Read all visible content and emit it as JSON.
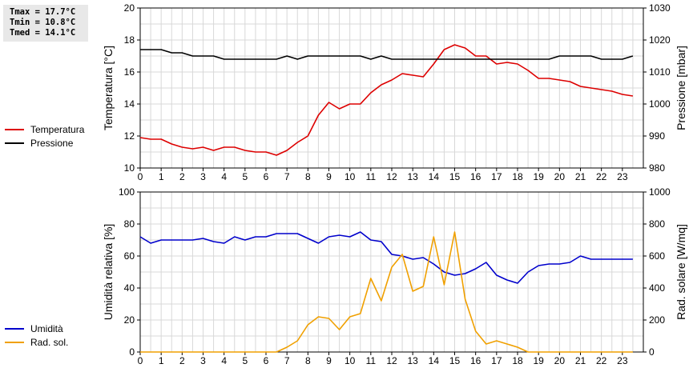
{
  "stats": {
    "tmax": "Tmax = 17.7°C",
    "tmin": "Tmin = 10.8°C",
    "tmed": "Tmed = 14.1°C"
  },
  "legend_top": [
    {
      "label": "Temperatura",
      "color": "#dd0000"
    },
    {
      "label": "Pressione",
      "color": "#000000"
    }
  ],
  "legend_bottom": [
    {
      "label": "Umidità",
      "color": "#0000cc"
    },
    {
      "label": "Rad. sol.",
      "color": "#f0a000"
    }
  ],
  "chart_data": [
    {
      "type": "line",
      "xlabel": "",
      "xlim": [
        0,
        24
      ],
      "x_ticks": [
        "0",
        "1",
        "2",
        "3",
        "4",
        "5",
        "6",
        "7",
        "8",
        "9",
        "10",
        "11",
        "12",
        "13",
        "14",
        "15",
        "16",
        "17",
        "18",
        "19",
        "20",
        "21",
        "22",
        "23"
      ],
      "ylabel": "Temperatura [°C]",
      "ylim": [
        10,
        20
      ],
      "y_ticks": [
        "10",
        "12",
        "14",
        "16",
        "18",
        "20"
      ],
      "y2label": "Pressione [mbar]",
      "y2lim": [
        980,
        1030
      ],
      "y2_ticks": [
        "980",
        "990",
        "1000",
        "1010",
        "1020",
        "1030"
      ],
      "grid": true,
      "series": [
        {
          "name": "Temperatura",
          "axis": "left",
          "color": "#dd0000",
          "x": [
            0,
            0.5,
            1,
            1.5,
            2,
            2.5,
            3,
            3.5,
            4,
            4.5,
            5,
            5.5,
            6,
            6.5,
            7,
            7.5,
            8,
            8.5,
            9,
            9.5,
            10,
            10.5,
            11,
            11.5,
            12,
            12.5,
            13,
            13.5,
            14,
            14.5,
            15,
            15.5,
            16,
            16.5,
            17,
            17.5,
            18,
            18.5,
            19,
            19.5,
            20,
            20.5,
            21,
            21.5,
            22,
            22.5,
            23,
            23.5
          ],
          "y": [
            11.9,
            11.8,
            11.8,
            11.5,
            11.3,
            11.2,
            11.3,
            11.1,
            11.3,
            11.3,
            11.1,
            11.0,
            11.0,
            10.8,
            11.1,
            11.6,
            12.0,
            13.3,
            14.1,
            13.7,
            14.0,
            14.0,
            14.7,
            15.2,
            15.5,
            15.9,
            15.8,
            15.7,
            16.5,
            17.4,
            17.7,
            17.5,
            17.0,
            17.0,
            16.5,
            16.6,
            16.5,
            16.1,
            15.6,
            15.6,
            15.5,
            15.4,
            15.1,
            15.0,
            14.9,
            14.8,
            14.6,
            14.5
          ]
        },
        {
          "name": "Pressione",
          "axis": "right",
          "color": "#000000",
          "x": [
            0,
            0.5,
            1,
            1.5,
            2,
            2.5,
            3,
            3.5,
            4,
            4.5,
            5,
            5.5,
            6,
            6.5,
            7,
            7.5,
            8,
            8.5,
            9,
            9.5,
            10,
            10.5,
            11,
            11.5,
            12,
            12.5,
            13,
            13.5,
            14,
            14.5,
            15,
            15.5,
            16,
            16.5,
            17,
            17.5,
            18,
            18.5,
            19,
            19.5,
            20,
            20.5,
            21,
            21.5,
            22,
            22.5,
            23,
            23.5
          ],
          "y": [
            1017,
            1017,
            1017,
            1016,
            1016,
            1015,
            1015,
            1015,
            1014,
            1014,
            1014,
            1014,
            1014,
            1014,
            1015,
            1014,
            1015,
            1015,
            1015,
            1015,
            1015,
            1015,
            1014,
            1015,
            1014,
            1014,
            1014,
            1014,
            1014,
            1014,
            1014,
            1014,
            1014,
            1014,
            1014,
            1014,
            1014,
            1014,
            1014,
            1014,
            1015,
            1015,
            1015,
            1015,
            1014,
            1014,
            1014,
            1015
          ]
        }
      ]
    },
    {
      "type": "line",
      "xlabel": "",
      "xlim": [
        0,
        24
      ],
      "x_ticks": [
        "0",
        "1",
        "2",
        "3",
        "4",
        "5",
        "6",
        "7",
        "8",
        "9",
        "10",
        "11",
        "12",
        "13",
        "14",
        "15",
        "16",
        "17",
        "18",
        "19",
        "20",
        "21",
        "22",
        "23"
      ],
      "ylabel": "Umidità relativa [%]",
      "ylim": [
        0,
        100
      ],
      "y_ticks": [
        "0",
        "20",
        "40",
        "60",
        "80",
        "100"
      ],
      "y2label": "Rad. solare [W/mq]",
      "y2lim": [
        0,
        1000
      ],
      "y2_ticks": [
        "0",
        "200",
        "400",
        "600",
        "800",
        "1000"
      ],
      "grid": true,
      "series": [
        {
          "name": "Umidità",
          "axis": "left",
          "color": "#0000cc",
          "x": [
            0,
            0.5,
            1,
            1.5,
            2,
            2.5,
            3,
            3.5,
            4,
            4.5,
            5,
            5.5,
            6,
            6.5,
            7,
            7.5,
            8,
            8.5,
            9,
            9.5,
            10,
            10.5,
            11,
            11.5,
            12,
            12.5,
            13,
            13.5,
            14,
            14.5,
            15,
            15.5,
            16,
            16.5,
            17,
            17.5,
            18,
            18.5,
            19,
            19.5,
            20,
            20.5,
            21,
            21.5,
            22,
            22.5,
            23,
            23.5
          ],
          "y": [
            72,
            68,
            70,
            70,
            70,
            70,
            71,
            69,
            68,
            72,
            70,
            72,
            72,
            74,
            74,
            74,
            71,
            68,
            72,
            73,
            72,
            75,
            70,
            69,
            61,
            60,
            58,
            59,
            55,
            50,
            48,
            49,
            52,
            56,
            48,
            45,
            43,
            50,
            54,
            55,
            55,
            56,
            60,
            58,
            58,
            58,
            58,
            58
          ]
        },
        {
          "name": "Rad. sol.",
          "axis": "right",
          "color": "#f0a000",
          "x": [
            0,
            0.5,
            1,
            1.5,
            2,
            2.5,
            3,
            3.5,
            4,
            4.5,
            5,
            5.5,
            6,
            6.5,
            7,
            7.5,
            8,
            8.5,
            9,
            9.5,
            10,
            10.5,
            11,
            11.5,
            12,
            12.5,
            13,
            13.5,
            14,
            14.5,
            15,
            15.5,
            16,
            16.5,
            17,
            17.5,
            18,
            18.5,
            19,
            19.5,
            20,
            20.5,
            21,
            21.5,
            22,
            22.5,
            23,
            23.5
          ],
          "y": [
            0,
            0,
            0,
            0,
            0,
            0,
            0,
            0,
            0,
            0,
            0,
            0,
            0,
            0,
            30,
            70,
            170,
            220,
            210,
            140,
            220,
            240,
            460,
            320,
            530,
            610,
            380,
            410,
            720,
            420,
            750,
            330,
            130,
            50,
            70,
            50,
            30,
            0,
            0,
            0,
            0,
            0,
            0,
            0,
            0,
            0,
            0,
            0
          ]
        }
      ]
    }
  ]
}
